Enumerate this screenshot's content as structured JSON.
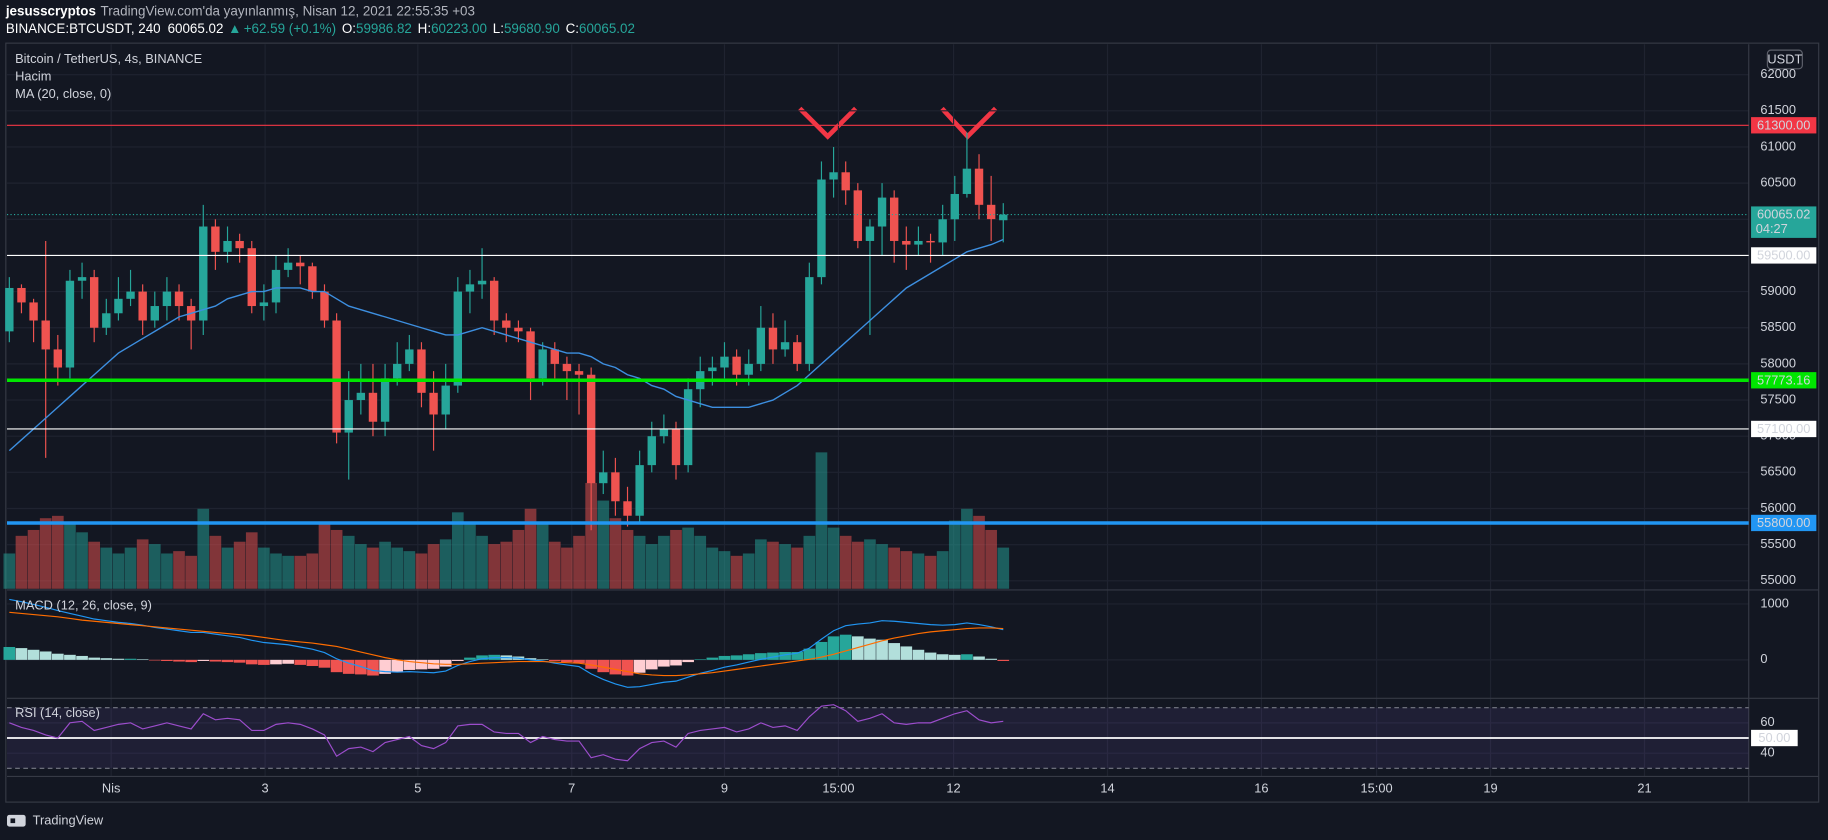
{
  "header": {
    "author": "jesusscryptos",
    "published": "TradingView.com'da yayınlanmış, Nisan 12, 2021 22:55:35 +03",
    "symbol": "BINANCE:BTCUSDT, 240",
    "last": "60065.02",
    "change": "+62.59 (+0.1%)",
    "ohlc": [
      [
        "O:",
        "59986.82"
      ],
      [
        "H:",
        "60223.00"
      ],
      [
        "L:",
        "59680.90"
      ],
      [
        "C:",
        "60065.02"
      ]
    ]
  },
  "chart_data": [
    {
      "type": "candlestick",
      "title": "Bitcoin / TetherUS, 4s, BINANCE",
      "currency": "USDT",
      "up_color": "#26a69a",
      "down_color": "#ef5350",
      "grid": true,
      "ylim": [
        54890,
        62420
      ],
      "yticks": [
        55000,
        55500,
        56000,
        56500,
        57000,
        57500,
        58000,
        58500,
        59000,
        59500,
        60000,
        60500,
        61000,
        61500,
        62000
      ],
      "xlim": [
        -0.77,
        143.5
      ],
      "xticks": [
        {
          "value": 8.4,
          "label": "Nis"
        },
        {
          "value": 21.1,
          "label": "3"
        },
        {
          "value": 33.7,
          "label": "5"
        },
        {
          "value": 46.4,
          "label": "7"
        },
        {
          "value": 59.0,
          "label": "9"
        },
        {
          "value": 68.4,
          "label": "15:00"
        },
        {
          "value": 77.9,
          "label": "12"
        },
        {
          "value": 90.6,
          "label": "14"
        },
        {
          "value": 103.3,
          "label": "16"
        },
        {
          "value": 112.8,
          "label": "15:00"
        },
        {
          "value": 122.2,
          "label": "19"
        },
        {
          "value": 134.9,
          "label": "21"
        }
      ],
      "open": [
        58450,
        59050,
        58850,
        58600,
        58200,
        57950,
        59150,
        59200,
        58500,
        58700,
        58900,
        59000,
        58600,
        58800,
        59000,
        58800,
        58600,
        59900,
        59550,
        59700,
        59600,
        58800,
        58850,
        59300,
        59400,
        59350,
        59000,
        58600,
        57050,
        57500,
        57600,
        57200,
        57800,
        58000,
        58200,
        57600,
        57300,
        57700,
        59000,
        59100,
        59150,
        58600,
        58500,
        58450,
        57800,
        58200,
        58000,
        57900,
        57850,
        56350,
        56500,
        56100,
        55900,
        56600,
        57000,
        57100,
        56600,
        57650,
        57900,
        57950,
        58100,
        57850,
        58000,
        58500,
        58200,
        58300,
        58000,
        59200,
        60550,
        60650,
        60400,
        59700,
        59900,
        60300,
        59700,
        59650,
        59700,
        59680,
        60000,
        60350,
        60700,
        60200,
        59986.82
      ],
      "high": [
        59200,
        59100,
        58900,
        59700,
        58400,
        59300,
        59400,
        59300,
        58900,
        59200,
        59300,
        59100,
        59000,
        59200,
        59100,
        58900,
        60200,
        60000,
        59900,
        59800,
        59700,
        59100,
        59500,
        59600,
        59500,
        59400,
        59100,
        58700,
        57900,
        58000,
        58000,
        58000,
        58300,
        58400,
        58300,
        57900,
        58000,
        59200,
        59300,
        59600,
        59200,
        58700,
        58600,
        58500,
        58300,
        58300,
        58100,
        58000,
        57950,
        56800,
        56700,
        56300,
        56800,
        57200,
        57300,
        57200,
        57800,
        58100,
        58100,
        58300,
        58200,
        58200,
        58800,
        58700,
        58600,
        58400,
        59400,
        60800,
        61000,
        60800,
        60500,
        60000,
        60500,
        60400,
        59900,
        59900,
        59800,
        60200,
        60600,
        61200,
        60900,
        60600,
        60223
      ],
      "low": [
        58300,
        58700,
        58300,
        56700,
        57700,
        57800,
        58900,
        58300,
        58400,
        58600,
        58800,
        58400,
        58500,
        58600,
        58600,
        58200,
        58400,
        59300,
        59400,
        59400,
        58700,
        58600,
        58700,
        59200,
        59100,
        58900,
        58500,
        56900,
        56400,
        57300,
        57000,
        57000,
        57700,
        57900,
        57400,
        56800,
        57100,
        57600,
        58700,
        58900,
        58400,
        58300,
        58300,
        57500,
        57700,
        57800,
        57500,
        57300,
        55700,
        56200,
        55900,
        55750,
        55800,
        56500,
        56900,
        56400,
        56500,
        57400,
        57700,
        57800,
        57700,
        57700,
        57900,
        58000,
        58100,
        57900,
        57900,
        59100,
        60300,
        60200,
        59600,
        58400,
        59500,
        59400,
        59300,
        59500,
        59400,
        59500,
        59700,
        60300,
        60000,
        59700,
        59680.9
      ],
      "close": [
        59050,
        58850,
        58600,
        58200,
        57950,
        59150,
        59200,
        58500,
        58700,
        58900,
        59000,
        58600,
        58800,
        59000,
        58800,
        58600,
        59900,
        59550,
        59700,
        59600,
        58800,
        58850,
        59300,
        59400,
        59350,
        59000,
        58600,
        57050,
        57500,
        57600,
        57200,
        57800,
        58000,
        58200,
        57600,
        57300,
        57700,
        59000,
        59100,
        59150,
        58600,
        58500,
        58450,
        57800,
        58200,
        58000,
        57900,
        57850,
        56350,
        56500,
        56100,
        55900,
        56600,
        57000,
        57100,
        56600,
        57650,
        57900,
        57950,
        58100,
        57850,
        58000,
        58500,
        58200,
        58300,
        58000,
        59200,
        60550,
        60650,
        60400,
        59700,
        59900,
        60300,
        59700,
        59650,
        59700,
        59680,
        60000,
        60350,
        60700,
        60200,
        60002.43,
        60065.02
      ],
      "volume": {
        "name": "Hacim",
        "up_color": "rgba(38,166,154,0.5)",
        "down_color": "rgba(239,83,80,0.5)",
        "values": [
          30,
          45,
          50,
          60,
          62,
          55,
          48,
          40,
          35,
          30,
          35,
          42,
          38,
          30,
          32,
          28,
          68,
          45,
          35,
          40,
          48,
          35,
          30,
          28,
          28,
          30,
          55,
          50,
          45,
          38,
          35,
          40,
          35,
          32,
          30,
          38,
          42,
          65,
          55,
          45,
          38,
          40,
          50,
          68,
          55,
          40,
          35,
          45,
          90,
          75,
          60,
          50,
          45,
          38,
          45,
          50,
          52,
          45,
          35,
          32,
          28,
          30,
          42,
          40,
          38,
          35,
          45,
          116,
          52,
          45,
          40,
          42,
          38,
          35,
          32,
          30,
          28,
          32,
          58,
          68,
          62,
          50,
          35
        ]
      },
      "ma": {
        "name": "MA (20, close, 0)",
        "color": "#3d8fe0",
        "values": [
          56800,
          56950,
          57100,
          57250,
          57400,
          57550,
          57700,
          57850,
          58000,
          58150,
          58250,
          58350,
          58450,
          58550,
          58650,
          58700,
          58750,
          58800,
          58900,
          58950,
          59000,
          59000,
          59050,
          59050,
          59050,
          59000,
          59000,
          58900,
          58800,
          58750,
          58700,
          58650,
          58600,
          58550,
          58500,
          58450,
          58400,
          58400,
          58450,
          58500,
          58450,
          58400,
          58350,
          58300,
          58250,
          58200,
          58150,
          58150,
          58100,
          58000,
          57950,
          57850,
          57800,
          57700,
          57650,
          57550,
          57500,
          57450,
          57400,
          57400,
          57400,
          57400,
          57450,
          57500,
          57600,
          57700,
          57850,
          58000,
          58150,
          58300,
          58450,
          58600,
          58750,
          58900,
          59050,
          59150,
          59250,
          59350,
          59450,
          59550,
          59600,
          59650,
          59720
        ]
      },
      "hlines": [
        {
          "value": 61300,
          "label": "61300.00",
          "color": "#f23645",
          "width": 1
        },
        {
          "value": 59500,
          "label": "59500.00",
          "color": "#ffffff",
          "width": 1
        },
        {
          "value": 57773.16,
          "label": "57773.16",
          "color": "#00e600",
          "width": 3
        },
        {
          "value": 57100,
          "label": "57100.00",
          "color": "#ffffff",
          "width": 1
        },
        {
          "value": 55800,
          "label": "55800.00",
          "color": "#2196f3",
          "width": 3
        }
      ],
      "last_price": {
        "value": 60065.02,
        "label": "60065.02",
        "countdown": "04:27",
        "color": "#26a69a"
      }
    },
    {
      "type": "macd",
      "title": "MACD (12, 26, close, 9)",
      "ylim": [
        -667,
        1229
      ],
      "yticks": [
        0,
        1000
      ],
      "macd_color": "#2196f3",
      "signal_color": "#ff6d00",
      "histogram_colors": [
        "#26a69a",
        "#b2dfdb",
        "#ffcdd2",
        "#ef5350"
      ],
      "histogram": [
        230,
        210,
        180,
        150,
        110,
        90,
        70,
        40,
        30,
        20,
        20,
        10,
        -10,
        -20,
        -30,
        -40,
        -20,
        -30,
        -40,
        -50,
        -80,
        -90,
        -80,
        -70,
        -90,
        -110,
        -140,
        -220,
        -250,
        -260,
        -280,
        -250,
        -220,
        -180,
        -170,
        -160,
        -120,
        -20,
        40,
        80,
        90,
        80,
        60,
        30,
        10,
        -20,
        -40,
        -60,
        -160,
        -220,
        -260,
        -280,
        -230,
        -170,
        -120,
        -100,
        -40,
        10,
        40,
        70,
        80,
        100,
        120,
        130,
        140,
        140,
        200,
        320,
        420,
        450,
        420,
        380,
        360,
        300,
        240,
        180,
        130,
        100,
        90,
        100,
        60,
        20,
        -20
      ],
      "macd": [
        1080,
        1040,
        990,
        940,
        880,
        830,
        780,
        730,
        700,
        670,
        650,
        620,
        580,
        550,
        520,
        490,
        490,
        460,
        430,
        400,
        350,
        310,
        290,
        270,
        230,
        190,
        130,
        20,
        -60,
        -120,
        -190,
        -210,
        -220,
        -210,
        -220,
        -230,
        -200,
        -100,
        -30,
        20,
        40,
        40,
        30,
        0,
        -20,
        -60,
        -90,
        -120,
        -250,
        -350,
        -430,
        -490,
        -480,
        -440,
        -400,
        -380,
        -310,
        -240,
        -190,
        -130,
        -90,
        -40,
        10,
        50,
        90,
        120,
        210,
        370,
        520,
        610,
        640,
        660,
        700,
        690,
        670,
        650,
        630,
        620,
        630,
        660,
        630,
        590,
        540
      ],
      "signal": [
        850,
        830,
        810,
        790,
        770,
        740,
        710,
        690,
        670,
        650,
        630,
        610,
        590,
        570,
        550,
        530,
        510,
        490,
        470,
        450,
        430,
        400,
        370,
        340,
        320,
        300,
        270,
        240,
        190,
        140,
        90,
        40,
        0,
        -30,
        -50,
        -70,
        -80,
        -80,
        -70,
        -60,
        -50,
        -40,
        -30,
        -30,
        -30,
        -40,
        -50,
        -60,
        -90,
        -130,
        -170,
        -210,
        -250,
        -270,
        -280,
        -280,
        -270,
        -250,
        -230,
        -200,
        -170,
        -140,
        -110,
        -80,
        -50,
        -20,
        10,
        50,
        100,
        160,
        220,
        280,
        340,
        390,
        430,
        470,
        500,
        520,
        540,
        560,
        570,
        570,
        560
      ]
    },
    {
      "type": "rsi",
      "title": "RSI (14, close)",
      "ylim": [
        25.4,
        75.4
      ],
      "yticks": [
        40,
        60
      ],
      "color": "#9c4dcc",
      "band": [
        30,
        70
      ],
      "midline": {
        "value": 50,
        "label": "50.00"
      },
      "values": [
        60,
        57,
        55,
        52,
        50,
        60,
        61,
        55,
        57,
        59,
        60,
        56,
        58,
        60,
        58,
        56,
        66,
        62,
        63,
        62,
        55,
        55,
        59,
        60,
        59,
        56,
        52,
        38,
        43,
        44,
        41,
        47,
        49,
        51,
        45,
        43,
        47,
        58,
        59,
        59,
        54,
        53,
        53,
        47,
        51,
        49,
        48,
        48,
        37,
        39,
        36,
        35,
        43,
        47,
        48,
        44,
        53,
        55,
        56,
        57,
        54,
        56,
        60,
        57,
        58,
        55,
        64,
        71,
        72,
        68,
        61,
        63,
        66,
        60,
        59,
        60,
        60,
        63,
        66,
        68,
        62,
        60,
        61
      ]
    }
  ],
  "footer": "TradingView"
}
